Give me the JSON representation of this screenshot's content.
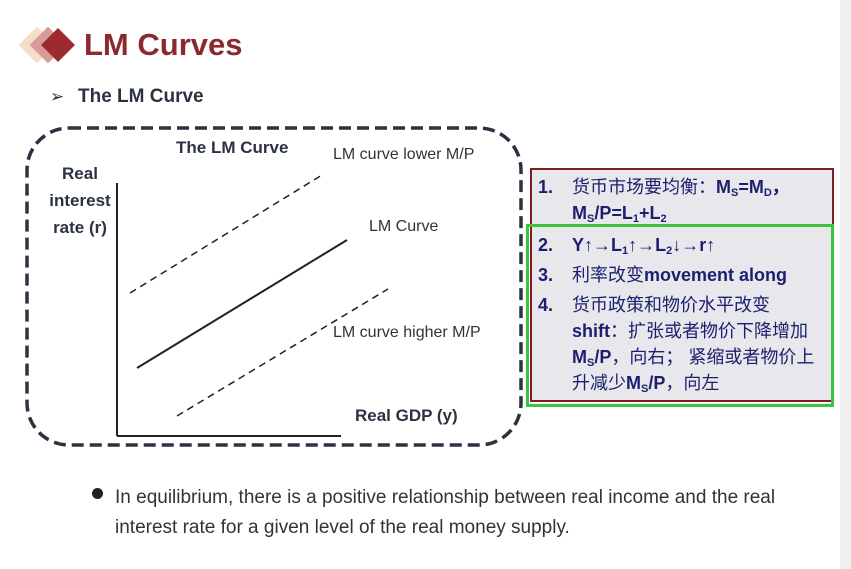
{
  "slide": {
    "title": "LM Curves",
    "subtitle": "The LM Curve",
    "bullet": "In equilibrium, there is a positive relationship between real income and the real interest rate for a given level of the real money supply."
  },
  "diagram": {
    "title": "The LM Curve",
    "y_axis_label": [
      "Real",
      "interest",
      "rate (r)"
    ],
    "x_axis_label": "Real GDP (y)",
    "curves": {
      "lower": "LM curve lower M/P",
      "main": "LM Curve",
      "higher": "LM curve higher M/P"
    }
  },
  "notes": {
    "n1": "1.",
    "n2": "2.",
    "n3": "3.",
    "n4": "4.",
    "i1": [
      "货币市场要均衡：",
      "M",
      "S",
      "=M",
      "D",
      "，",
      "M",
      "S",
      "/P=L",
      "1",
      "+L",
      "2"
    ],
    "i2": [
      "Y↑→L",
      "1",
      "↑→L",
      "2",
      "↓→r↑"
    ],
    "i3": [
      "利率改变",
      "movement along"
    ],
    "i4": [
      "货币政策和物价水平改变",
      "shift",
      "：扩张或者物价下降增加",
      "M",
      "S",
      "/P",
      "，向右； 紧缩或者物价上升减少",
      "M",
      "S",
      "/P",
      "，向左"
    ]
  },
  "colors": {
    "title": "#8b2a2e",
    "text": "#1b1f6e",
    "box_border": "#7a1f23",
    "highlight": "#3cc43c"
  }
}
